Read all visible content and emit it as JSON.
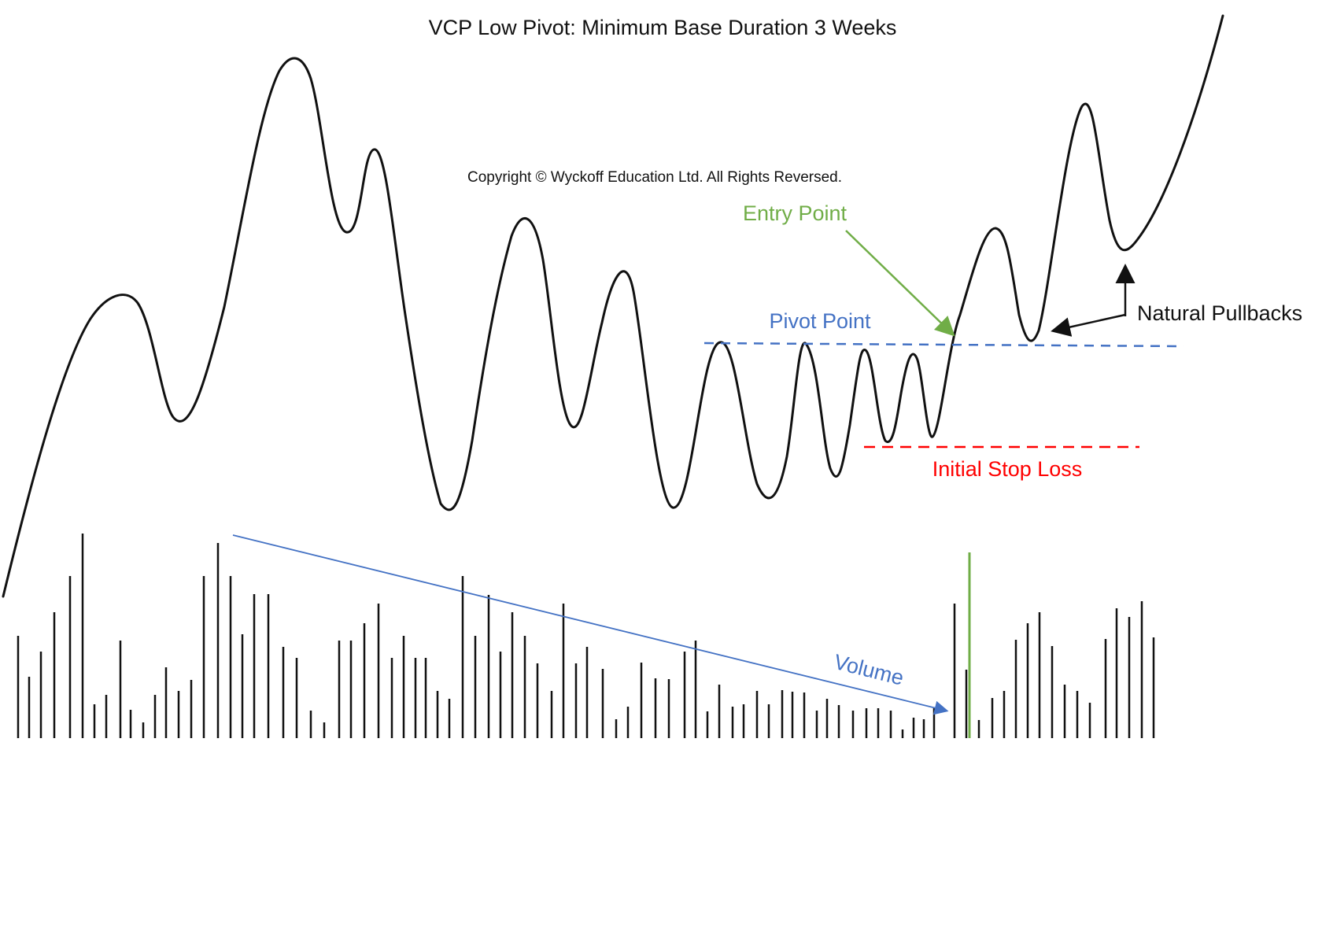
{
  "title": "VCP Low Pivot: Minimum Base Duration 3 Weeks",
  "copyright": "Copyright © Wyckoff Education Ltd. All Rights Reversed.",
  "labels": {
    "entry_point": "Entry Point",
    "pivot_point": "Pivot Point",
    "initial_stop_loss": "Initial Stop Loss",
    "natural_pullbacks": "Natural Pullbacks",
    "volume": "Volume"
  },
  "colors": {
    "price_line": "#111111",
    "volume_bar": "#111111",
    "entry": "#70ad47",
    "pivot": "#4472c4",
    "stop_loss": "#ff0000",
    "volume_trend": "#4472c4",
    "breakout_bar": "#70ad47",
    "text": "#111111"
  }
}
